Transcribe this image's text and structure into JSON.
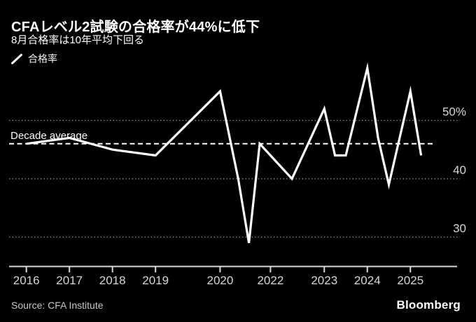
{
  "header": {
    "title": "CFAレベル2試験の合格率が44%に低下",
    "subtitle": "8月合格率は10年平均下回る"
  },
  "footer": {
    "source": "Source: CFA Institute",
    "brand": "Bloomberg"
  },
  "colors": {
    "bg": "#000000",
    "series": "#ffffff",
    "grid": "#8a8a8a",
    "axis": "#d9d9d9",
    "tick_text": "#d6d6d6",
    "text_main": "#ffffff",
    "text_dim": "#c8c8c8"
  },
  "chart_data": {
    "type": "line",
    "title": "CFAレベル2試験の合格率が44%に低下",
    "subtitle": "8月合格率は10年平均下回る",
    "unit": "%",
    "grid": "dotted-horizontal",
    "legend_position": "top-left",
    "series": [
      {
        "name": "合格率",
        "points": [
          {
            "label": "Jun 2016",
            "x": 2016.45,
            "y": 46
          },
          {
            "label": "Jun 2017",
            "x": 2017.45,
            "y": 47
          },
          {
            "label": "Jun 2018",
            "x": 2018.45,
            "y": 45
          },
          {
            "label": "Jun 2019",
            "x": 2019.45,
            "y": 44
          },
          {
            "label": "Dec 2020",
            "x": 2020.95,
            "y": 55
          },
          {
            "label": "May 2021",
            "x": 2021.37,
            "y": 40
          },
          {
            "label": "Aug 2021",
            "x": 2021.62,
            "y": 29
          },
          {
            "label": "Nov 2021",
            "x": 2021.87,
            "y": 46
          },
          {
            "label": "Feb 2022",
            "x": 2022.12,
            "y": 44
          },
          {
            "label": "Aug 2022",
            "x": 2022.62,
            "y": 40
          },
          {
            "label": "Nov 2022",
            "x": 2022.87,
            "y": 44
          },
          {
            "label": "May 2023",
            "x": 2023.37,
            "y": 52
          },
          {
            "label": "Aug 2023",
            "x": 2023.62,
            "y": 44
          },
          {
            "label": "Nov 2023",
            "x": 2023.87,
            "y": 44
          },
          {
            "label": "May 2024",
            "x": 2024.37,
            "y": 59
          },
          {
            "label": "Aug 2024",
            "x": 2024.62,
            "y": 47
          },
          {
            "label": "Nov 2024",
            "x": 2024.87,
            "y": 39
          },
          {
            "label": "May 2025",
            "x": 2025.37,
            "y": 55
          },
          {
            "label": "Aug 2025",
            "x": 2025.62,
            "y": 44
          }
        ]
      }
    ],
    "reference_line": {
      "label": "Decade average",
      "value": 46,
      "style": "dashed"
    },
    "y_axis": {
      "side": "right",
      "range": [
        25,
        62
      ],
      "ticks": [
        {
          "label": "50%",
          "value": 50
        },
        {
          "label": "40",
          "value": 40
        },
        {
          "label": "30",
          "value": 30
        }
      ]
    },
    "x_axis": {
      "range": [
        2016.0,
        2026.5
      ],
      "ticks": [
        {
          "label": "2016",
          "t": 2016.45
        },
        {
          "label": "2017",
          "t": 2017.45
        },
        {
          "label": "2018",
          "t": 2018.45
        },
        {
          "label": "2019",
          "t": 2019.45
        },
        {
          "label": "2020",
          "t": 2020.95
        },
        {
          "label": "2022",
          "t": 2022.12
        },
        {
          "label": "2023",
          "t": 2023.37
        },
        {
          "label": "2024",
          "t": 2024.37
        },
        {
          "label": "2025",
          "t": 2025.37
        }
      ]
    }
  }
}
